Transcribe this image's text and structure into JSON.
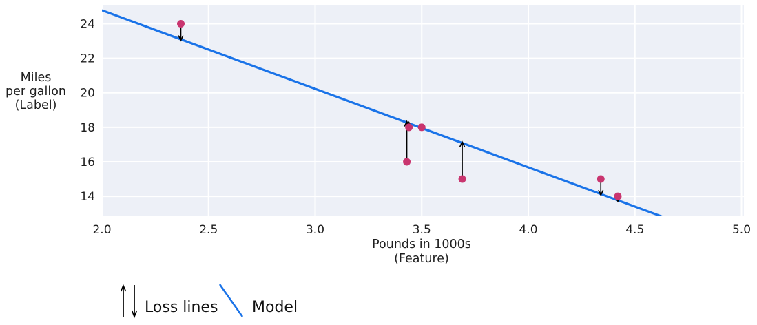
{
  "figure": {
    "y_axis_title_lines": [
      "Miles",
      "per gallon",
      "(Label)"
    ],
    "x_axis_title_lines": [
      "Pounds in 1000s",
      "(Feature)"
    ]
  },
  "colors": {
    "plot_bg": "#edf0f7",
    "grid": "#ffffff",
    "model_line": "#1a73e8",
    "point": "#c9356f",
    "arrow": "#000000",
    "text": "#1f1f1f"
  },
  "icons": {
    "loss_icon": "up-and-down-arrows",
    "model_icon": "blue-diagonal-line-segment"
  },
  "chart_data": {
    "type": "scatter",
    "title": "",
    "xlabel": "Pounds in 1000s (Feature)",
    "ylabel": "Miles per gallon (Label)",
    "xlim": [
      2.0,
      5.02
    ],
    "ylim": [
      12.9,
      25.1
    ],
    "grid": true,
    "x_ticks": [
      2.0,
      2.5,
      3.0,
      3.5,
      4.0,
      4.5,
      5.0
    ],
    "x_tick_labels": [
      "2.0",
      "2.5",
      "3.0",
      "3.5",
      "4.0",
      "4.5",
      "5.0"
    ],
    "y_ticks": [
      14,
      16,
      18,
      20,
      22,
      24
    ],
    "y_tick_labels": [
      "14",
      "16",
      "18",
      "20",
      "22",
      "24"
    ],
    "points": [
      {
        "x": 3.5,
        "y": 18,
        "loss_arrow": false
      },
      {
        "x": 3.69,
        "y": 15,
        "loss_arrow": true
      },
      {
        "x": 3.44,
        "y": 18,
        "loss_arrow": true
      },
      {
        "x": 3.43,
        "y": 16,
        "loss_arrow": true
      },
      {
        "x": 4.34,
        "y": 15,
        "loss_arrow": true
      },
      {
        "x": 4.42,
        "y": 14,
        "loss_arrow": true
      },
      {
        "x": 2.37,
        "y": 24,
        "loss_arrow": true
      }
    ],
    "model": {
      "slope": -4.55,
      "intercept": 33.88
    },
    "legend": {
      "position": "bottom-left",
      "entries": [
        "Loss lines",
        "Model"
      ]
    }
  }
}
